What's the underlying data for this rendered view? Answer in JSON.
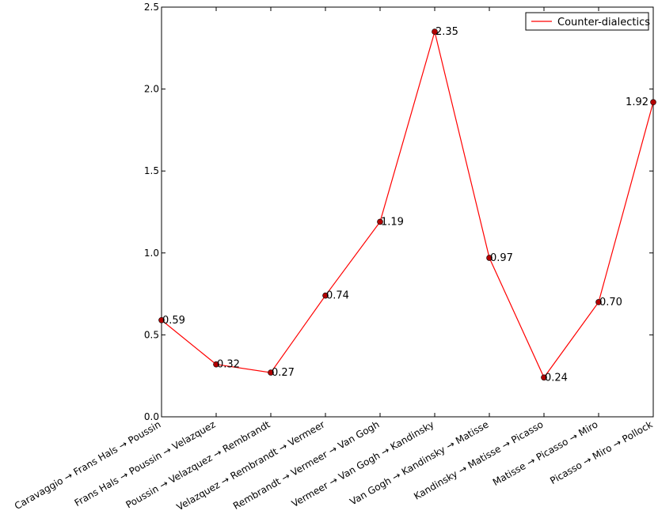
{
  "chart_data": {
    "type": "line",
    "categories": [
      "Caravaggio → Frans Hals → Poussin",
      "Frans Hals → Poussin → Velazquez",
      "Poussin → Velazquez → Rembrandt",
      "Velazquez → Rembrandt → Vermeer",
      "Rembrandt → Vermeer → Van Gogh",
      "Vermeer → Van Gogh → Kandinsky",
      "Van Gogh → Kandinsky → Matisse",
      "Kandinsky → Matisse → Picasso",
      "Matisse → Picasso → Miro",
      "Picasso → Miro → Pollock"
    ],
    "series": [
      {
        "name": "Counter-dialectics",
        "values": [
          0.59,
          0.32,
          0.27,
          0.74,
          1.19,
          2.35,
          0.97,
          0.24,
          0.7,
          1.92
        ],
        "data_labels": [
          "0.59",
          "0.32",
          "0.27",
          "0.74",
          "1.19",
          "2.35",
          "0.97",
          "0.24",
          "0.70",
          "1.92"
        ],
        "color": "#ff0000",
        "marker_color": "#b30000"
      }
    ],
    "yticks": [
      "0.0",
      "0.5",
      "1.0",
      "1.5",
      "2.0",
      "2.5"
    ],
    "ylim": [
      0,
      2.5
    ],
    "grid": false,
    "legend_position": "top-right",
    "title": "",
    "xlabel": "",
    "ylabel": ""
  }
}
